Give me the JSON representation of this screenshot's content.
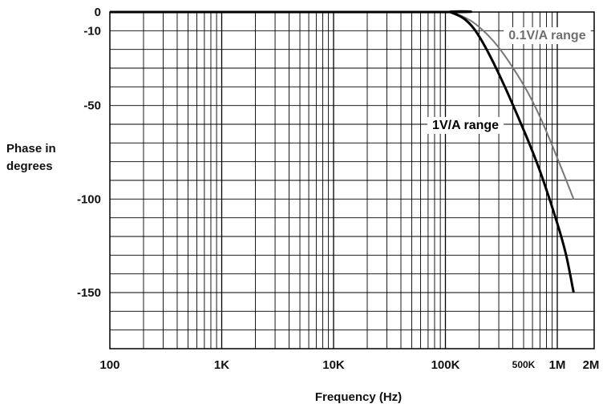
{
  "chart_data": {
    "type": "line",
    "xlabel": "Frequency (Hz)",
    "ylabel": "Phase in\ndegrees",
    "x_scale": "log",
    "xlim": [
      100,
      2000000
    ],
    "ylim": [
      -180,
      0
    ],
    "grid": true,
    "x_ticks": [
      {
        "value": 100,
        "label": "100"
      },
      {
        "value": 1000,
        "label": "1K"
      },
      {
        "value": 10000,
        "label": "10K"
      },
      {
        "value": 100000,
        "label": "100K"
      },
      {
        "value": 500000,
        "label": "500K"
      },
      {
        "value": 1000000,
        "label": "1M"
      },
      {
        "value": 2000000,
        "label": "2M"
      }
    ],
    "y_ticks": [
      {
        "value": 0,
        "label": "0"
      },
      {
        "value": -10,
        "label": "-10"
      },
      {
        "value": -50,
        "label": "-50"
      },
      {
        "value": -100,
        "label": "-100"
      },
      {
        "value": -150,
        "label": "-150"
      }
    ],
    "series": [
      {
        "name": "0.1V/A range",
        "color": "#777777",
        "x": [
          100,
          100000,
          110000,
          150000,
          200000,
          300000,
          500000,
          700000,
          1000000,
          1400000
        ],
        "y": [
          0,
          0,
          0,
          -3,
          -8,
          -19,
          -39,
          -56,
          -78,
          -100
        ]
      },
      {
        "name": "1V/A range",
        "color": "#000000",
        "x": [
          100,
          100000,
          110000,
          150000,
          200000,
          300000,
          500000,
          700000,
          1000000,
          1200000,
          1400000
        ],
        "y": [
          0,
          0,
          0,
          -4,
          -13,
          -33,
          -63,
          -85,
          -113,
          -130,
          -150
        ]
      }
    ],
    "annotations": [
      {
        "text": "0.1V/A range",
        "x": 1800000,
        "y": -12
      },
      {
        "text": "1V/A range",
        "x": 300000,
        "y": -60
      }
    ]
  }
}
